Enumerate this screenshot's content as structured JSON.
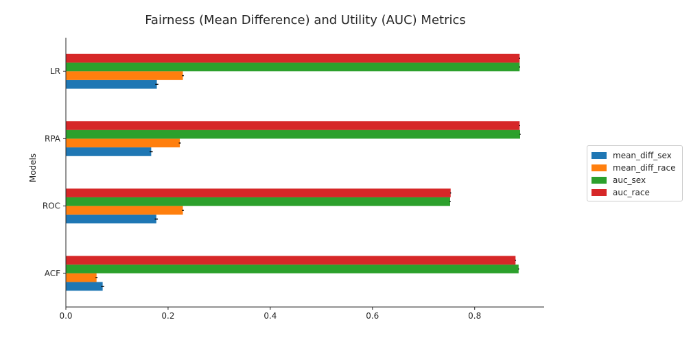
{
  "chart_data": {
    "type": "bar",
    "orientation": "horizontal",
    "title": "Fairness (Mean Difference) and Utility (AUC) Metrics",
    "xlabel": "",
    "ylabel": "Models",
    "categories": [
      "ACF",
      "ROC",
      "RPA",
      "LR"
    ],
    "series": [
      {
        "name": "mean_diff_sex",
        "color": "#1f77b4",
        "values": [
          0.072,
          0.177,
          0.167,
          0.178
        ],
        "errors": [
          0.003,
          0.003,
          0.003,
          0.003
        ]
      },
      {
        "name": "mean_diff_race",
        "color": "#ff7f0e",
        "values": [
          0.06,
          0.229,
          0.223,
          0.229
        ],
        "errors": [
          0.002,
          0.002,
          0.002,
          0.002
        ]
      },
      {
        "name": "auc_sex",
        "color": "#2ca02c",
        "values": [
          0.886,
          0.752,
          0.889,
          0.888
        ],
        "errors": [
          0.001,
          0.001,
          0.001,
          0.001
        ]
      },
      {
        "name": "auc_race",
        "color": "#d62728",
        "values": [
          0.88,
          0.753,
          0.888,
          0.888
        ],
        "errors": [
          0.001,
          0.001,
          0.001,
          0.001
        ]
      }
    ],
    "xlim": [
      0,
      0.936
    ],
    "xticks": [
      0.0,
      0.2,
      0.4,
      0.6,
      0.8
    ],
    "xtick_labels": [
      "0.0",
      "0.2",
      "0.4",
      "0.6",
      "0.8"
    ],
    "grid": false,
    "legend_position": "outside-right"
  }
}
